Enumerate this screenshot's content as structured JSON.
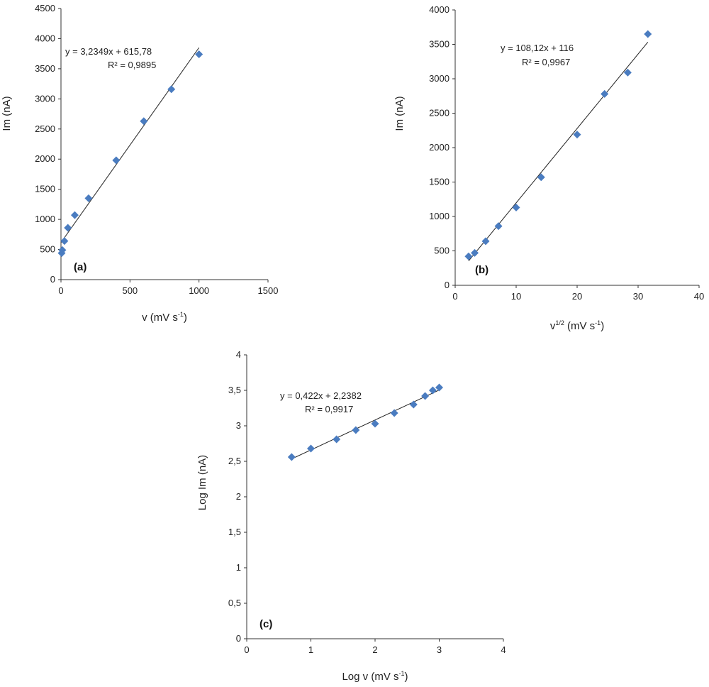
{
  "colors": {
    "marker": "#4a7cc0",
    "trendline": "#222222",
    "axis": "#333333"
  },
  "chart_data": [
    {
      "type": "scatter",
      "panel_label": "(a)",
      "xlabel": "v (mV s",
      "xlabel_sup": "-1",
      "xlabel_end": ")",
      "ylabel": "Im (nA)",
      "xlim": [
        0,
        1500
      ],
      "ylim": [
        0,
        4500
      ],
      "x_ticks": [
        0,
        500,
        1000,
        1500
      ],
      "y_ticks": [
        0,
        500,
        1000,
        1500,
        2000,
        2500,
        3000,
        3500,
        4000,
        4500
      ],
      "x_tick_labels": [
        "0",
        "500",
        "1000",
        "1500"
      ],
      "y_tick_labels": [
        "0",
        "500",
        "1000",
        "1500",
        "2000",
        "2500",
        "3000",
        "3500",
        "4000",
        "4500"
      ],
      "points": [
        {
          "x": 5,
          "y": 440
        },
        {
          "x": 10,
          "y": 490
        },
        {
          "x": 25,
          "y": 640
        },
        {
          "x": 50,
          "y": 860
        },
        {
          "x": 100,
          "y": 1070
        },
        {
          "x": 200,
          "y": 1350
        },
        {
          "x": 400,
          "y": 1980
        },
        {
          "x": 600,
          "y": 2630
        },
        {
          "x": 800,
          "y": 3160
        },
        {
          "x": 1000,
          "y": 3740
        }
      ],
      "trendline": {
        "slope": 3.2349,
        "intercept": 615.78,
        "x_range": [
          0,
          1000
        ]
      },
      "equation": "y = 3,2349x + 615,78",
      "r2": "R² = 0,9895"
    },
    {
      "type": "scatter",
      "panel_label": "(b)",
      "xlabel": "v",
      "xlabel_sup": "1/2",
      "xlabel_mid": " (mV s",
      "xlabel_sup2": "-1",
      "xlabel_end": ")",
      "ylabel": "Im (nA)",
      "xlim": [
        0,
        40
      ],
      "ylim": [
        0,
        4000
      ],
      "x_ticks": [
        0,
        10,
        20,
        30,
        40
      ],
      "y_ticks": [
        0,
        500,
        1000,
        1500,
        2000,
        2500,
        3000,
        3500,
        4000
      ],
      "x_tick_labels": [
        "0",
        "10",
        "20",
        "30",
        "40"
      ],
      "y_tick_labels": [
        "0",
        "500",
        "1000",
        "1500",
        "2000",
        "2500",
        "3000",
        "3500",
        "4000"
      ],
      "points": [
        {
          "x": 2.2,
          "y": 420
        },
        {
          "x": 3.2,
          "y": 470
        },
        {
          "x": 5.0,
          "y": 640
        },
        {
          "x": 7.1,
          "y": 860
        },
        {
          "x": 10.0,
          "y": 1130
        },
        {
          "x": 14.1,
          "y": 1570
        },
        {
          "x": 20.0,
          "y": 2190
        },
        {
          "x": 24.5,
          "y": 2780
        },
        {
          "x": 28.3,
          "y": 3090
        },
        {
          "x": 31.6,
          "y": 3650
        }
      ],
      "trendline": {
        "slope": 108.12,
        "intercept": 116,
        "x_range": [
          2.2,
          31.6
        ]
      },
      "equation": "y = 108,12x + 116",
      "r2": "R² = 0,9967"
    },
    {
      "type": "scatter",
      "panel_label": "(c)",
      "xlabel": "Log v (mV s",
      "xlabel_sup": "-1",
      "xlabel_end": ")",
      "ylabel": "Log Im (nA)",
      "xlim": [
        0,
        4
      ],
      "ylim": [
        0,
        4
      ],
      "x_ticks": [
        0,
        1,
        2,
        3,
        4
      ],
      "y_ticks": [
        0,
        0.5,
        1,
        1.5,
        2,
        2.5,
        3,
        3.5,
        4
      ],
      "x_tick_labels": [
        "0",
        "1",
        "2",
        "3",
        "4"
      ],
      "y_tick_labels": [
        "0",
        "0,5",
        "1",
        "1,5",
        "2",
        "2,5",
        "3",
        "3,5",
        "4"
      ],
      "points": [
        {
          "x": 0.7,
          "y": 2.56
        },
        {
          "x": 1.0,
          "y": 2.68
        },
        {
          "x": 1.4,
          "y": 2.81
        },
        {
          "x": 1.7,
          "y": 2.94
        },
        {
          "x": 2.0,
          "y": 3.03
        },
        {
          "x": 2.3,
          "y": 3.18
        },
        {
          "x": 2.6,
          "y": 3.3
        },
        {
          "x": 2.78,
          "y": 3.42
        },
        {
          "x": 2.9,
          "y": 3.5
        },
        {
          "x": 3.0,
          "y": 3.54
        }
      ],
      "trendline": {
        "slope": 0.422,
        "intercept": 2.2382,
        "x_range": [
          0.7,
          3.0
        ]
      },
      "equation": "y = 0,422x + 2,2382",
      "r2": "R² = 0,9917"
    }
  ]
}
